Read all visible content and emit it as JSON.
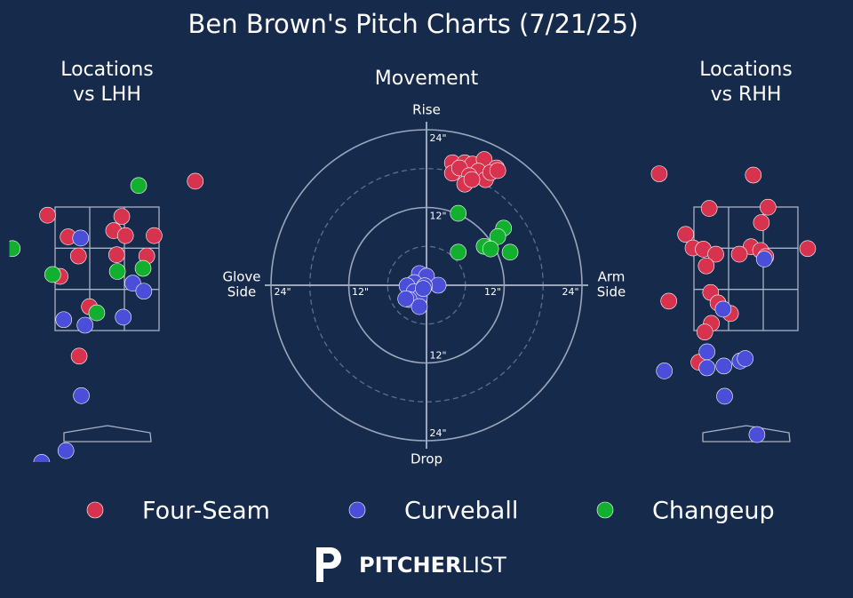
{
  "title": "Ben Brown's Pitch Charts (7/21/25)",
  "legend": {
    "entries": [
      {
        "name": "Four-Seam",
        "color": "#d7334f"
      },
      {
        "name": "Curveball",
        "color": "#4a4ed8"
      },
      {
        "name": "Changeup",
        "color": "#12b02e"
      }
    ]
  },
  "logo": {
    "bold": "PITCHER",
    "light": "LIST"
  },
  "chart_data": [
    {
      "type": "scatter",
      "title": [
        "Locations",
        "vs LHH"
      ],
      "xlim": [
        -1.33,
        1.33
      ],
      "ylim": [
        -0.6,
        4.85
      ],
      "series": [
        {
          "x": [
            1.2,
            -0.81,
            0.2,
            -0.53,
            0.09,
            0.25,
            0.64,
            -0.39,
            0.13,
            0.54,
            -0.64,
            -0.24,
            -0.38
          ],
          "values": [
            3.93,
            3.38,
            3.36,
            3.03,
            3.13,
            3.05,
            3.05,
            2.72,
            2.74,
            2.72,
            2.39,
            1.9,
            1.1
          ]
        },
        {
          "x": [
            -0.36,
            0.35,
            0.5,
            -0.59,
            -0.3,
            0.22,
            -0.35,
            -0.56,
            -0.89
          ],
          "values": [
            3.01,
            2.28,
            2.15,
            1.69,
            1.6,
            1.73,
            0.46,
            -0.43,
            -0.62
          ]
        },
        {
          "x": [
            0.43,
            -1.29,
            -0.74,
            0.14,
            0.49,
            -0.14
          ],
          "values": [
            3.86,
            2.84,
            2.42,
            2.47,
            2.52,
            1.8
          ]
        }
      ]
    },
    {
      "type": "movement",
      "title": [
        "Movement"
      ],
      "xlim": [
        -24,
        24
      ],
      "ylim": [
        -24,
        24
      ],
      "rings": [
        6,
        12,
        18,
        24
      ],
      "rticks": [
        {
          "value": 12,
          "label": "12\""
        },
        {
          "value": 24,
          "label": "24\""
        }
      ],
      "axis_labels": {
        "top": [
          "Rise"
        ],
        "bottom": [
          "Drop"
        ],
        "left": [
          "Glove",
          "Side"
        ],
        "right": [
          "Arm",
          "Side"
        ]
      },
      "series": [
        {
          "x": [
            4.0,
            5.9,
            7.1,
            8.9,
            10.8,
            4.0,
            5.1,
            8.0,
            6.6,
            5.9,
            9.1,
            9.9,
            7.0,
            11.0
          ],
          "values": [
            18.9,
            18.9,
            18.7,
            19.4,
            18.1,
            17.3,
            18.1,
            17.6,
            16.9,
            15.6,
            16.3,
            17.4,
            16.3,
            17.7
          ]
        },
        {
          "x": [
            -1.1,
            0,
            -1.9,
            1.8,
            -3.0,
            -0.3,
            -1.9,
            -1.1,
            -2.7,
            -1.1,
            -3.2,
            -0.5
          ],
          "values": [
            1.8,
            1.4,
            0.4,
            0,
            -0.1,
            -0.1,
            -1.0,
            -1.9,
            -2.2,
            -3.3,
            -2.1,
            -0.5
          ]
        },
        {
          "x": [
            4.9,
            11.9,
            11.0,
            8.9,
            9.9,
            12.9,
            4.9
          ],
          "values": [
            11.1,
            8.8,
            7.5,
            6.0,
            5.6,
            5.1,
            5.1
          ]
        }
      ]
    },
    {
      "type": "scatter",
      "title": [
        "Locations",
        "vs RHH"
      ],
      "xlim": [
        -1.33,
        1.33
      ],
      "ylim": [
        -0.6,
        4.85
      ],
      "series": [
        {
          "x": [
            -1.18,
            0.1,
            0.3,
            -0.5,
            0.21,
            -0.82,
            -0.72,
            -0.58,
            -0.41,
            0.07,
            0.2,
            0.27,
            -0.09,
            -0.54,
            0.84,
            -1.05,
            -0.48,
            -0.38,
            -0.21,
            -0.47,
            -0.56,
            -0.64
          ],
          "values": [
            4.05,
            4.03,
            3.51,
            3.49,
            3.26,
            3.07,
            2.85,
            2.83,
            2.75,
            2.87,
            2.81,
            2.71,
            2.75,
            2.56,
            2.84,
            1.99,
            2.13,
            1.96,
            1.79,
            1.63,
            1.49,
            1.0
          ]
        },
        {
          "x": [
            0.25,
            -0.31,
            -0.53,
            -1.11,
            -0.53,
            -0.3,
            -0.08,
            -0.01,
            -0.29,
            0.15
          ],
          "values": [
            2.67,
            1.86,
            1.17,
            0.86,
            0.91,
            0.94,
            1.02,
            1.06,
            0.45,
            -0.17
          ]
        },
        {
          "x": [],
          "values": []
        }
      ]
    }
  ]
}
